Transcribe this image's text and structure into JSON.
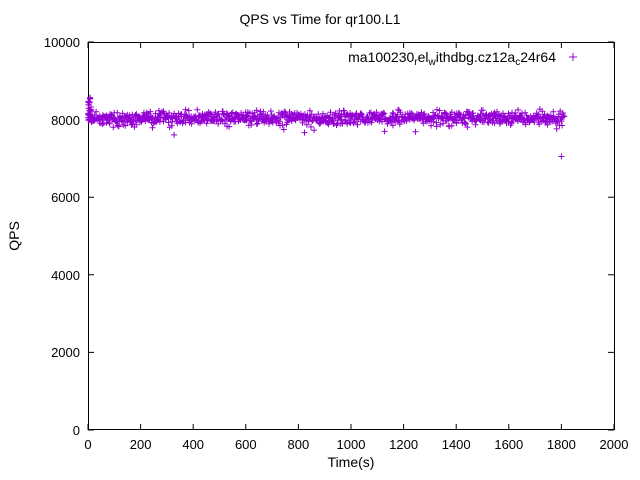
{
  "chart_data": {
    "type": "scatter",
    "title": "QPS vs Time for qr100.L1",
    "xlabel": "Time(s)",
    "ylabel": "QPS",
    "xlim": [
      0,
      2000
    ],
    "ylim": [
      0,
      10000
    ],
    "x_ticks": [
      0,
      200,
      400,
      600,
      800,
      1000,
      1200,
      1400,
      1600,
      1800,
      2000
    ],
    "y_ticks": [
      0,
      2000,
      4000,
      6000,
      8000,
      10000
    ],
    "grid": false,
    "legend_position": "top-right-inside",
    "series": [
      {
        "name": "ma100230_rel_withdbg.cz12a_c24r64",
        "label_segments": [
          {
            "t": "ma100230"
          },
          {
            "t": "r",
            "sub": true
          },
          {
            "t": "el"
          },
          {
            "t": "w",
            "sub": true
          },
          {
            "t": "ithdbg.cz12a"
          },
          {
            "t": "c",
            "sub": true
          },
          {
            "t": "24r64"
          }
        ],
        "color": "#9400D3",
        "marker": "plus",
        "summary": {
          "x_start": 0,
          "x_end": 1810,
          "y_mean": 8040,
          "y_std": 90,
          "y_band_min": 7560,
          "y_band_max": 8290,
          "approx_count": 950
        },
        "start_spike": {
          "x_max": 12,
          "y_min": 7950,
          "y_max": 8620,
          "count": 28
        },
        "outliers": [
          [
            1800,
            7050
          ]
        ],
        "seed": 11
      }
    ]
  }
}
